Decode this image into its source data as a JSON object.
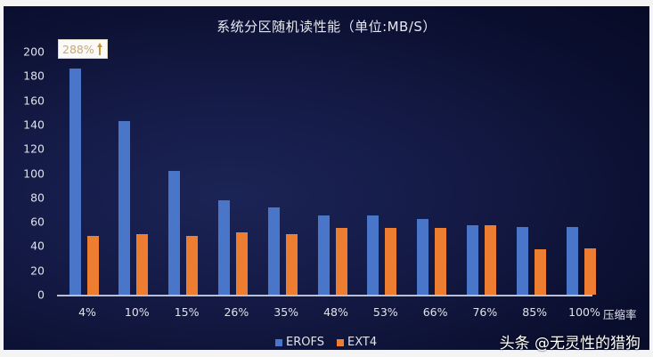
{
  "chart_data": {
    "type": "bar",
    "title": "系统分区随机读性能（单位:MB/S）",
    "xlabel": "压缩率",
    "ylabel": "",
    "ylim": [
      0,
      200
    ],
    "yticks": [
      0,
      20,
      40,
      60,
      80,
      100,
      120,
      140,
      160,
      180,
      200
    ],
    "grid": false,
    "legend_position": "bottom",
    "categories": [
      "4%",
      "10%",
      "15%",
      "26%",
      "35%",
      "48%",
      "53%",
      "66%",
      "76%",
      "85%",
      "100%"
    ],
    "series": [
      {
        "name": "EROFS",
        "color": "#4a76c9",
        "values": [
          186,
          143,
          102,
          78,
          72,
          65,
          65,
          62,
          57,
          56,
          56
        ]
      },
      {
        "name": "EXT4",
        "color": "#ed7d31",
        "values": [
          48,
          50,
          48,
          51,
          50,
          55,
          55,
          55,
          57,
          37,
          38
        ]
      }
    ],
    "annotations": [
      {
        "text": "288%",
        "icon": "up-arrow",
        "target": "4%"
      }
    ]
  },
  "watermark": "头条 @无灵性的猎狗",
  "colors": {
    "erofs": "#4a76c9",
    "ext4": "#ed7d31",
    "callout_text": "#c8a877"
  }
}
